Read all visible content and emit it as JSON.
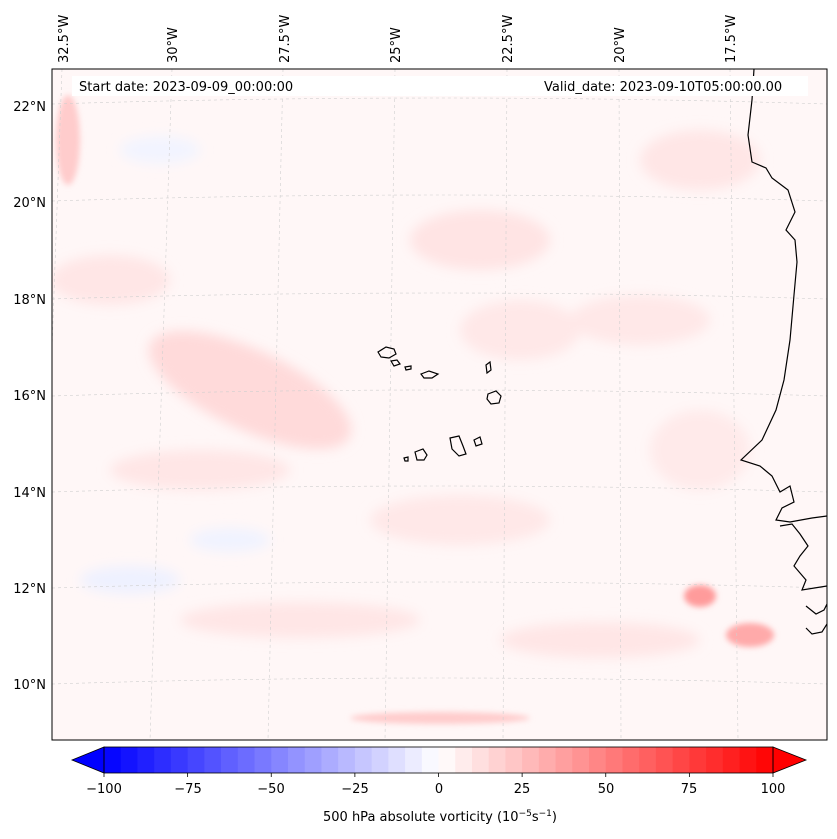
{
  "map": {
    "start_label": "Start date: 2023-09-09_00:00:00",
    "valid_label": "Valid_date: 2023-09-10T05:00:00.00",
    "lon_ticks": [
      "32.5°W",
      "30°W",
      "27.5°W",
      "25°W",
      "22.5°W",
      "20°W",
      "17.5°W"
    ],
    "lat_ticks": [
      "22°N",
      "20°N",
      "18°N",
      "16°N",
      "14°N",
      "12°N",
      "10°N"
    ],
    "islands": "Cape Verde islands",
    "coastline": "West African coast"
  },
  "colorbar": {
    "ticks": [
      "−100",
      "−75",
      "−50",
      "−25",
      "0",
      "25",
      "50",
      "75",
      "100"
    ],
    "label_main": "500 hPa absolute vorticity (10",
    "label_sup1": "−5",
    "label_mid": "s",
    "label_sup2": "−1",
    "label_end": ")",
    "vmin": -100,
    "vmax": 100,
    "low_color": "#0000ff",
    "mid_color": "#ffffff",
    "high_color": "#ff0000"
  }
}
